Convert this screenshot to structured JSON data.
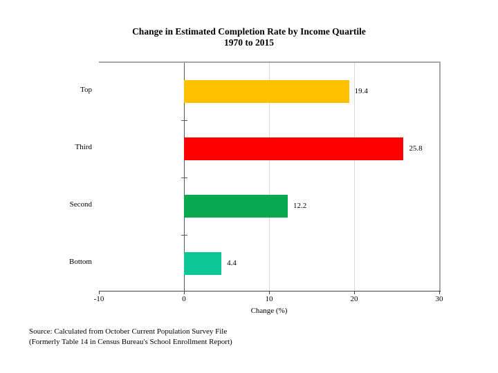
{
  "chart": {
    "title_line1": "Change in Estimated Completion Rate by Income Quartile",
    "title_line2": "1970 to 2015",
    "xlabel": "Change (%)"
  },
  "source": {
    "line1": "Source: Calculated from October Current Population Survey File",
    "line2": "(Formerly Table 14 in Census Bureau's School Enrollment Report)"
  },
  "chart_data": {
    "type": "bar",
    "orientation": "horizontal",
    "title": "Change in Estimated Completion Rate by Income Quartile 1970 to 2015",
    "categories": [
      "Top",
      "Third",
      "Second",
      "Bottom"
    ],
    "values": [
      19.4,
      25.8,
      12.2,
      4.4
    ],
    "value_labels": [
      "19.4",
      "25.8",
      "12.2",
      "4.4"
    ],
    "bar_colors": [
      "#ffc000",
      "#fe0000",
      "#07a94f",
      "#0cc795"
    ],
    "xlabel": "Change (%)",
    "xlim": [
      -10,
      30
    ],
    "x_ticks": [
      -10,
      0,
      10,
      20,
      30
    ],
    "x_tick_labels": [
      "-10",
      "0",
      "10",
      "20",
      "30"
    ],
    "grid": "vertical-light-at-10-and-20",
    "legend": "none"
  }
}
